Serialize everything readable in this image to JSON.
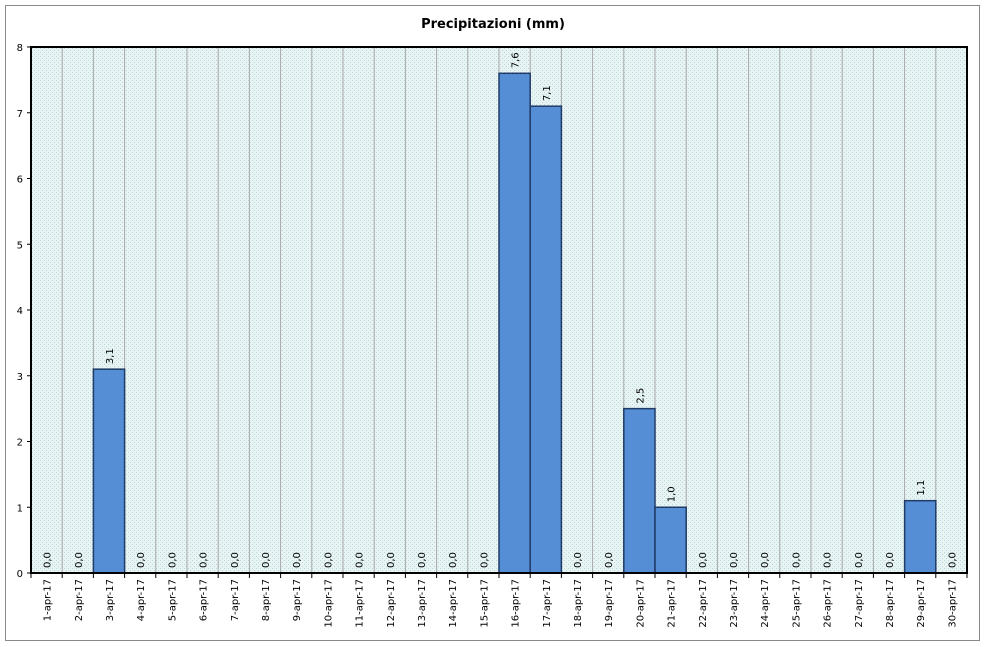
{
  "chart_data": {
    "type": "bar",
    "title": "Precipitazioni (mm)",
    "xlabel": "",
    "ylabel": "",
    "ylim": [
      0,
      8
    ],
    "yticks": [
      "0",
      "1",
      "2",
      "3",
      "4",
      "5",
      "6",
      "7",
      "8"
    ],
    "grid": true,
    "categories": [
      "1-apr-17",
      "2-apr-17",
      "3-apr-17",
      "4-apr-17",
      "5-apr-17",
      "6-apr-17",
      "7-apr-17",
      "8-apr-17",
      "9-apr-17",
      "10-apr-17",
      "11-apr-17",
      "12-apr-17",
      "13-apr-17",
      "14-apr-17",
      "15-apr-17",
      "16-apr-17",
      "17-apr-17",
      "18-apr-17",
      "19-apr-17",
      "20-apr-17",
      "21-apr-17",
      "22-apr-17",
      "23-apr-17",
      "24-apr-17",
      "25-apr-17",
      "26-apr-17",
      "27-apr-17",
      "28-apr-17",
      "29-apr-17",
      "30-apr-17"
    ],
    "values": [
      0,
      0,
      3.1,
      0,
      0,
      0,
      0,
      0,
      0,
      0,
      0,
      0,
      0,
      0,
      0,
      7.6,
      7.1,
      0,
      0,
      2.5,
      1.0,
      0,
      0,
      0,
      0,
      0,
      0,
      0,
      1.1,
      0
    ],
    "data_labels": [
      "0,0",
      "0,0",
      "3,1",
      "0,0",
      "0,0",
      "0,0",
      "0,0",
      "0,0",
      "0,0",
      "0,0",
      "0,0",
      "0,0",
      "0,0",
      "0,0",
      "0,0",
      "7,6",
      "7,1",
      "0,0",
      "0,0",
      "2,5",
      "1,0",
      "0,0",
      "0,0",
      "0,0",
      "0,0",
      "0,0",
      "0,0",
      "0,0",
      "1,1",
      "0,0"
    ],
    "colors": {
      "bar": "#558ed5",
      "bar_border": "#1f3b66",
      "plot_bg": "#dcefef",
      "grid": "#a6a6a6"
    }
  }
}
